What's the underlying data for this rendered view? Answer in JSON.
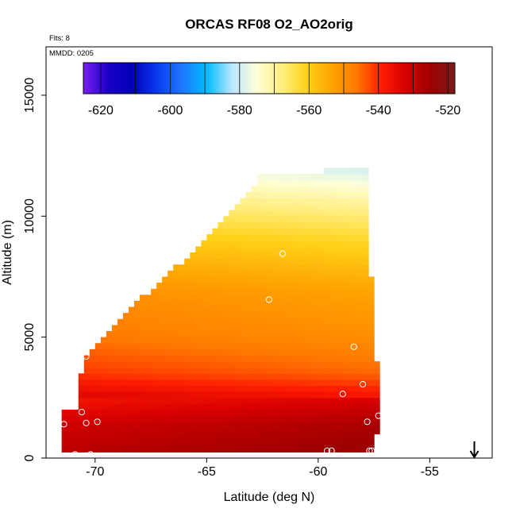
{
  "chart_data": {
    "type": "heatmap",
    "title": "ORCAS RF08 O2_AO2orig",
    "flights_note": "Flts: 8",
    "date_note": "MMDD: 0205",
    "xlabel": "Latitude (deg N)",
    "ylabel": "Altitude (m)",
    "xlim": [
      -72.2,
      -52.2
    ],
    "ylim": [
      0,
      17000
    ],
    "x_ticks": [
      -70,
      -65,
      -60,
      -55
    ],
    "x_tick_labels": [
      "-70",
      "-65",
      "-60",
      "-55"
    ],
    "y_ticks": [
      0,
      5000,
      10000,
      15000
    ],
    "y_tick_labels": [
      "0",
      "5000",
      "10000",
      "15000"
    ],
    "colorbar": {
      "min": -625,
      "max": -518,
      "ticks": [
        -620,
        -600,
        -580,
        -560,
        -540,
        -520
      ],
      "tick_labels": [
        "-620",
        "-600",
        "-580",
        "-560",
        "-540",
        "-520"
      ],
      "colors": [
        "#7a1ff0",
        "#1a00c8",
        "#0000b8",
        "#0a3cf0",
        "#1e78ff",
        "#00bcff",
        "#b9e6ff",
        "#ffffd8",
        "#ffee80",
        "#ffd21a",
        "#ffa400",
        "#ff7a00",
        "#ff1e00",
        "#d80000",
        "#a00000",
        "#7a1a1a"
      ]
    },
    "field_description": "Gridded O2 values; roughly -525 near surface (dark red) rising to about -575 at the top of the sampled region (light blue)",
    "value_profile": [
      {
        "altitude": 300,
        "value": -524
      },
      {
        "altitude": 1500,
        "value": -527
      },
      {
        "altitude": 2500,
        "value": -533
      },
      {
        "altitude": 3500,
        "value": -541
      },
      {
        "altitude": 5000,
        "value": -546
      },
      {
        "altitude": 7000,
        "value": -550
      },
      {
        "altitude": 9000,
        "value": -558
      },
      {
        "altitude": 10500,
        "value": -566
      },
      {
        "altitude": 12000,
        "value": -576
      }
    ],
    "sampled_points": [
      {
        "lat": -70.9,
        "alt": 150
      },
      {
        "lat": -70.2,
        "alt": 150
      },
      {
        "lat": -71.4,
        "alt": 1400
      },
      {
        "lat": -70.6,
        "alt": 1900
      },
      {
        "lat": -70.4,
        "alt": 1450
      },
      {
        "lat": -69.9,
        "alt": 1500
      },
      {
        "lat": -70.4,
        "alt": 4200
      },
      {
        "lat": -62.2,
        "alt": 6550
      },
      {
        "lat": -61.6,
        "alt": 8450
      },
      {
        "lat": -58.4,
        "alt": 4600
      },
      {
        "lat": -58.9,
        "alt": 2650
      },
      {
        "lat": -58.0,
        "alt": 3050
      },
      {
        "lat": -57.8,
        "alt": 1500
      },
      {
        "lat": -57.3,
        "alt": 1750
      },
      {
        "lat": -59.6,
        "alt": 300
      },
      {
        "lat": -59.4,
        "alt": 300
      },
      {
        "lat": -57.7,
        "alt": 300
      },
      {
        "lat": -57.6,
        "alt": 300
      }
    ],
    "marker_arrow": {
      "lat": -53.0,
      "label": "↓"
    },
    "grid": false
  }
}
